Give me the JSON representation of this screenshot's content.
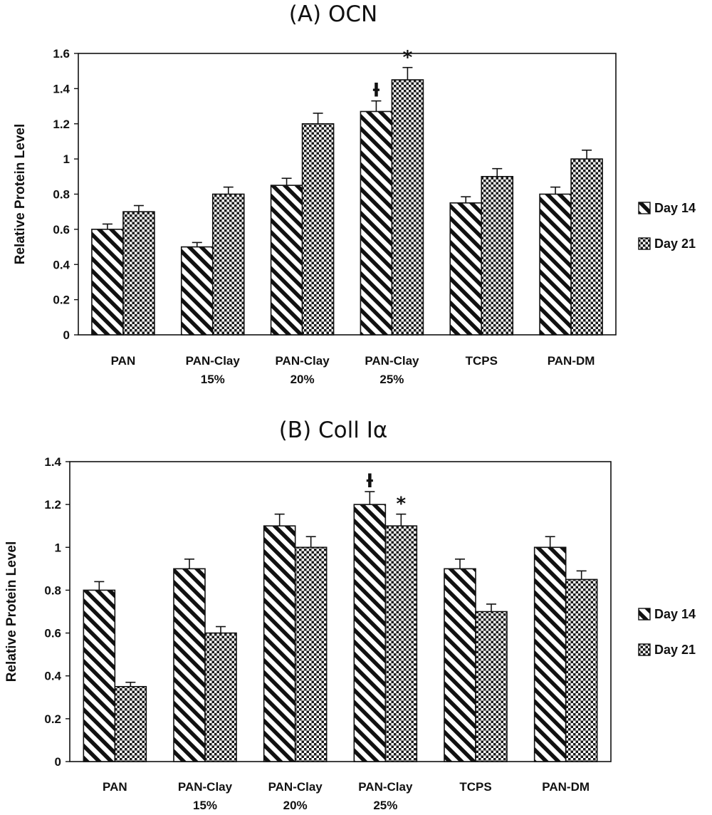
{
  "chart_data": [
    {
      "type": "bar",
      "title": "(A) OCN",
      "ylabel": "Relative Protein Level",
      "xlabel": "",
      "ylim": [
        0,
        1.6
      ],
      "yticks": [
        "0",
        "0.2",
        "0.4",
        "0.6",
        "0.8",
        "1",
        "1.2",
        "1.4",
        "1.6"
      ],
      "categories": [
        [
          "PAN"
        ],
        [
          "PAN-Clay",
          "15%"
        ],
        [
          "PAN-Clay",
          "20%"
        ],
        [
          "PAN-Clay",
          "25%"
        ],
        [
          "TCPS"
        ],
        [
          "PAN-DM"
        ]
      ],
      "series": [
        {
          "name": "Day 14",
          "pattern": "diagonal-hatch",
          "values": [
            0.6,
            0.5,
            0.85,
            1.27,
            0.75,
            0.8
          ],
          "errors": [
            0.03,
            0.025,
            0.04,
            0.06,
            0.035,
            0.04
          ]
        },
        {
          "name": "Day 21",
          "pattern": "crosshatch",
          "values": [
            0.7,
            0.8,
            1.2,
            1.45,
            0.9,
            1.0
          ],
          "errors": [
            0.035,
            0.04,
            0.06,
            0.07,
            0.045,
            0.05
          ]
        }
      ],
      "annotations": [
        {
          "text": "ƚ",
          "category_index": 3,
          "series_index": 0
        },
        {
          "text": "*",
          "category_index": 3,
          "series_index": 1
        }
      ],
      "legend": "right",
      "grid": false
    },
    {
      "type": "bar",
      "title": "(B) Coll Iα",
      "ylabel": "Relative Protein Level",
      "xlabel": "",
      "ylim": [
        0,
        1.4
      ],
      "yticks": [
        "0",
        "0.2",
        "0.4",
        "0.6",
        "0.8",
        "1",
        "1.2",
        "1.4"
      ],
      "categories": [
        [
          "PAN"
        ],
        [
          "PAN-Clay",
          "15%"
        ],
        [
          "PAN-Clay",
          "20%"
        ],
        [
          "PAN-Clay",
          "25%"
        ],
        [
          "TCPS"
        ],
        [
          "PAN-DM"
        ]
      ],
      "series": [
        {
          "name": "Day 14",
          "pattern": "diagonal-hatch",
          "values": [
            0.8,
            0.9,
            1.1,
            1.2,
            0.9,
            1.0
          ],
          "errors": [
            0.04,
            0.045,
            0.055,
            0.06,
            0.045,
            0.05
          ]
        },
        {
          "name": "Day 21",
          "pattern": "crosshatch",
          "values": [
            0.35,
            0.6,
            1.0,
            1.1,
            0.7,
            0.85
          ],
          "errors": [
            0.02,
            0.03,
            0.05,
            0.055,
            0.035,
            0.04
          ]
        }
      ],
      "annotations": [
        {
          "text": "ƚ",
          "category_index": 3,
          "series_index": 0
        },
        {
          "text": "*",
          "category_index": 3,
          "series_index": 1
        }
      ],
      "legend": "right",
      "grid": false
    }
  ]
}
